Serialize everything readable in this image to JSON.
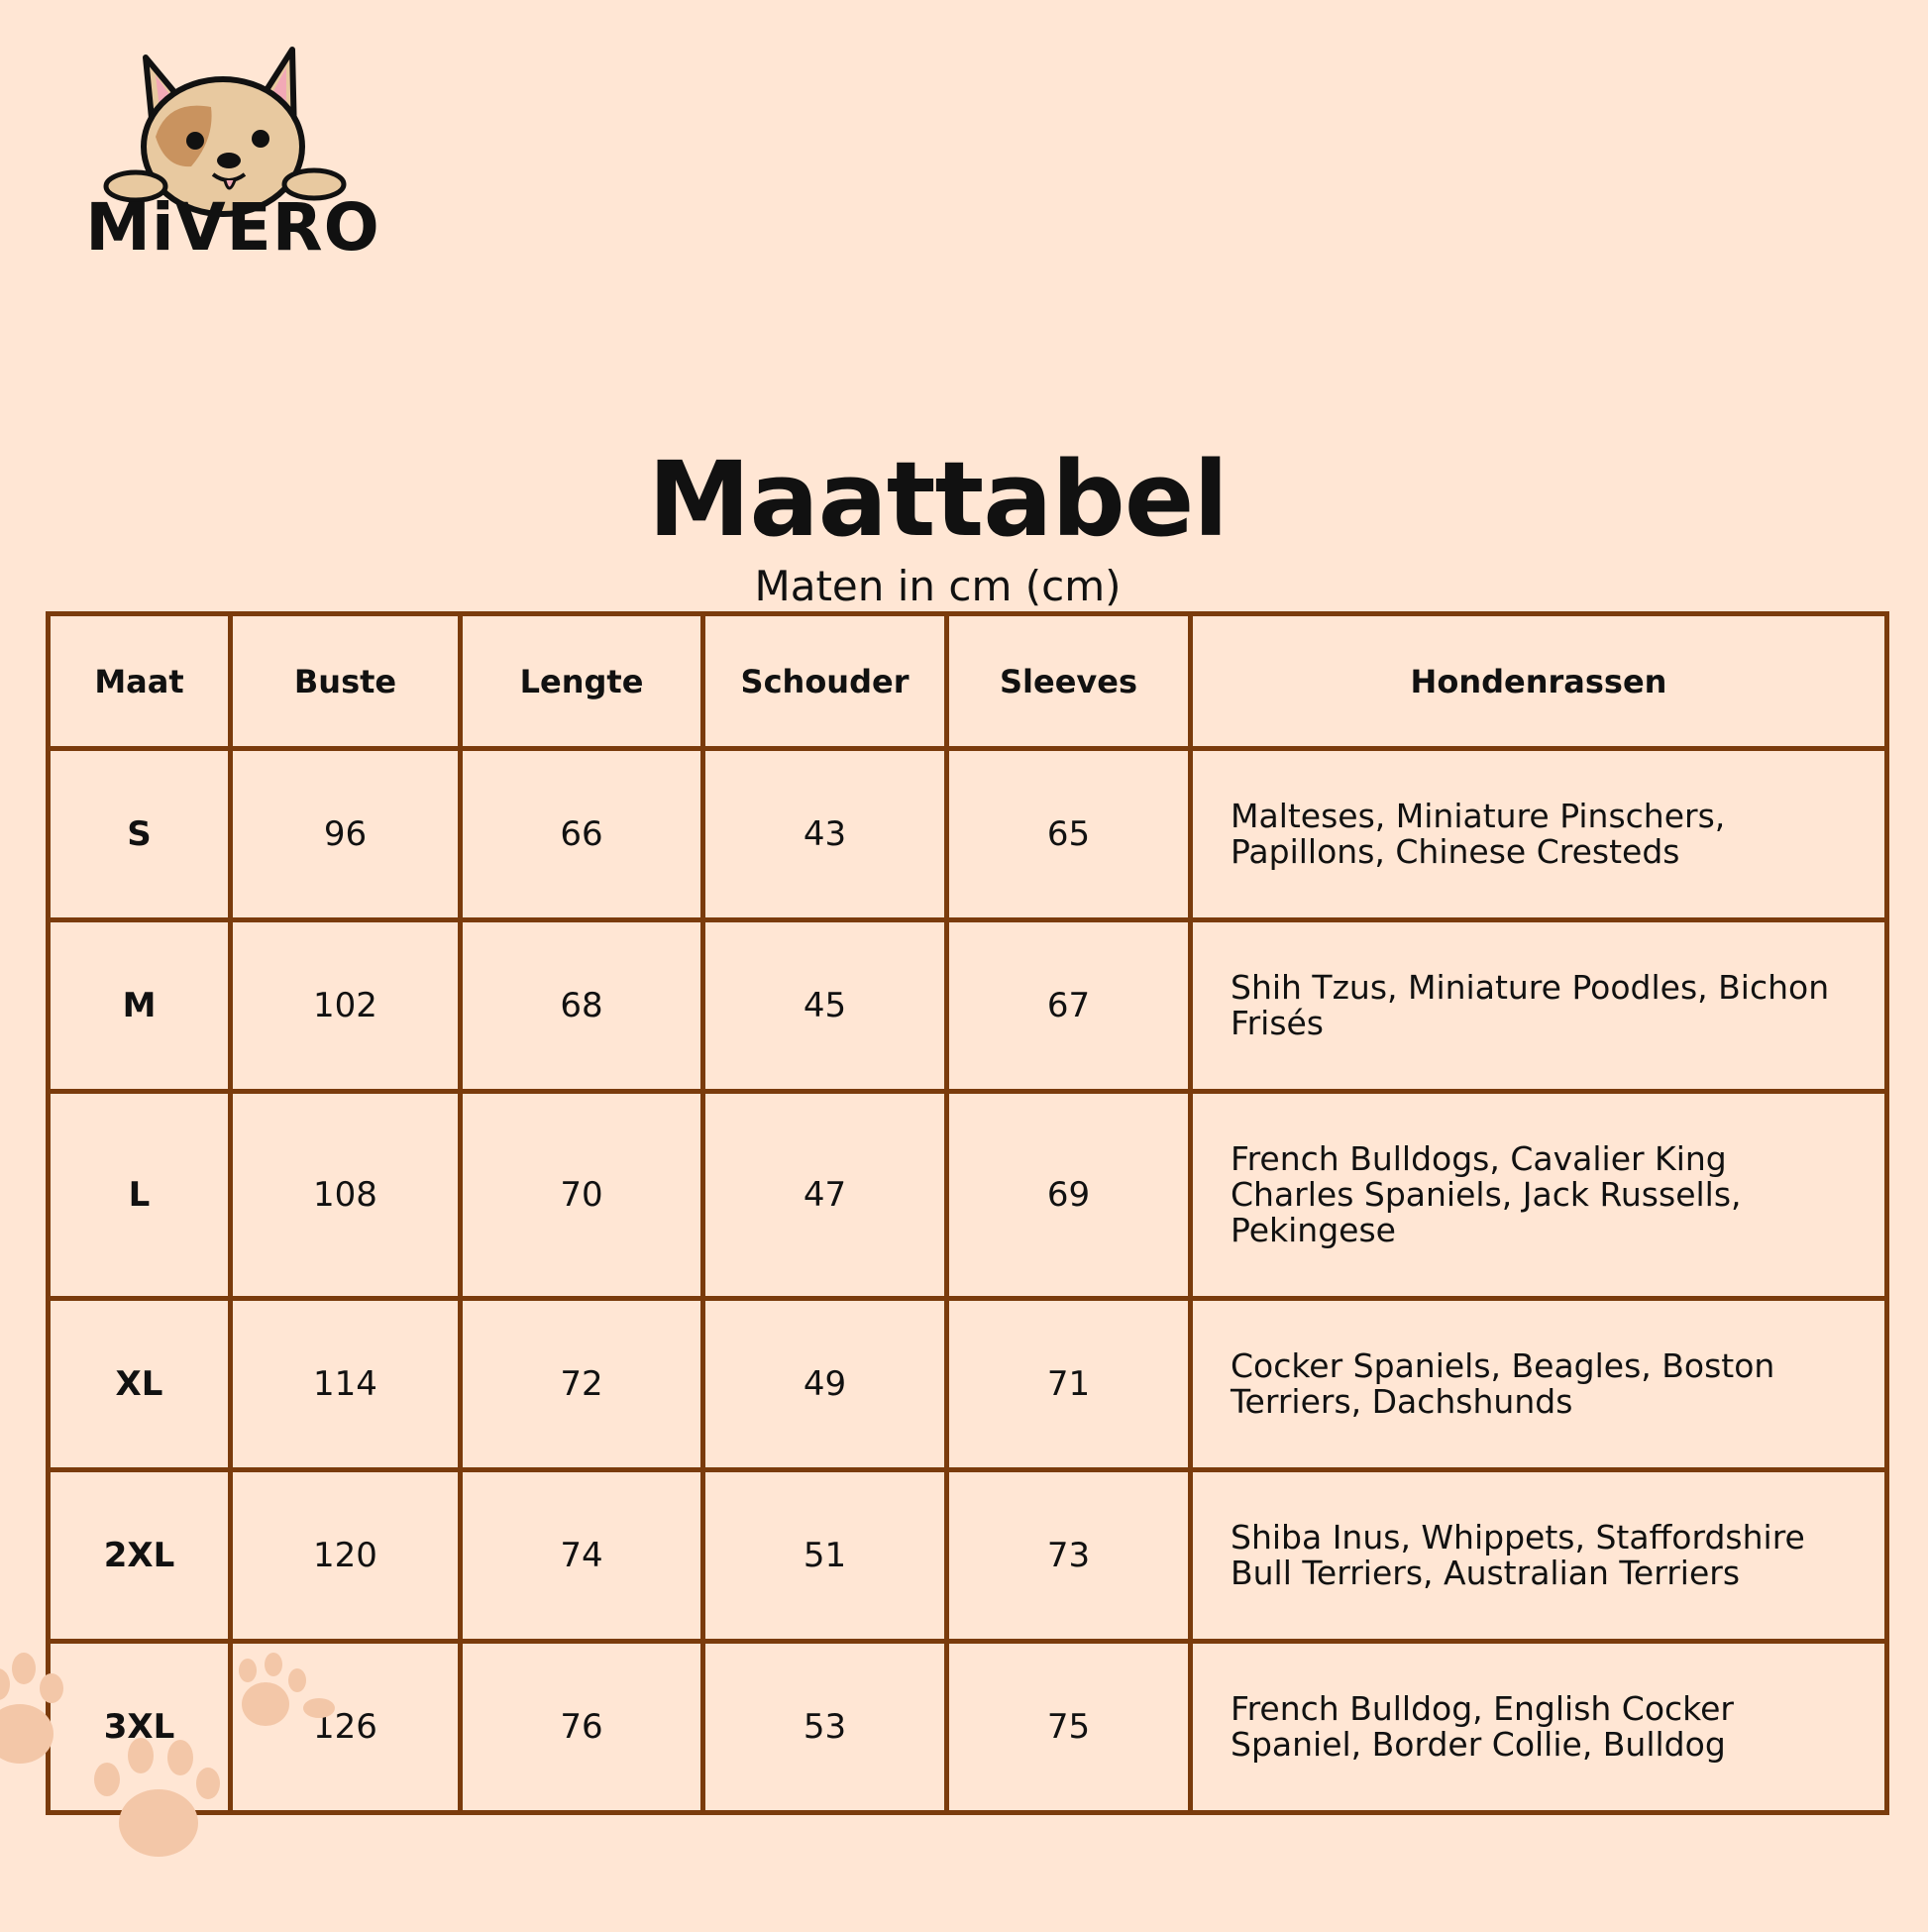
{
  "brand": {
    "logo_text": "MiVERO"
  },
  "heading": {
    "title": "Maattabel",
    "subtitle": "Maten in cm (cm)"
  },
  "table": {
    "headers": [
      "Maat",
      "Buste",
      "Lengte",
      "Schouder",
      "Sleeves",
      "Hondenrassen"
    ],
    "rows": [
      {
        "maat": "S",
        "buste": "96",
        "lengte": "66",
        "schouder": "43",
        "sleeves": "65",
        "rassen": "Malteses, Miniature Pinschers, Papillons, Chinese Cresteds"
      },
      {
        "maat": "M",
        "buste": "102",
        "lengte": "68",
        "schouder": "45",
        "sleeves": "67",
        "rassen": "Shih Tzus, Miniature Poodles, Bichon Frisés"
      },
      {
        "maat": "L",
        "buste": "108",
        "lengte": "70",
        "schouder": "47",
        "sleeves": "69",
        "rassen": "French Bulldogs, Cavalier King Charles Spaniels, Jack Russells, Pekingese"
      },
      {
        "maat": "XL",
        "buste": "114",
        "lengte": "72",
        "schouder": "49",
        "sleeves": "71",
        "rassen": "Cocker Spaniels, Beagles, Boston Terriers, Dachshunds"
      },
      {
        "maat": "2XL",
        "buste": "120",
        "lengte": "74",
        "schouder": "51",
        "sleeves": "73",
        "rassen": "Shiba Inus, Whippets, Staffordshire Bull Terriers, Australian Terriers"
      },
      {
        "maat": "3XL",
        "buste": "126",
        "lengte": "76",
        "schouder": "53",
        "sleeves": "75",
        "rassen": "French Bulldog, English Cocker Spaniel, Border Collie, Bulldog"
      }
    ]
  },
  "colors": {
    "background": "#ffe6d4",
    "table_border": "#7a3b0c",
    "paw_print": "#f3c7a8",
    "dog_fur": "#e8c9a0",
    "dog_patch": "#c9935f"
  }
}
